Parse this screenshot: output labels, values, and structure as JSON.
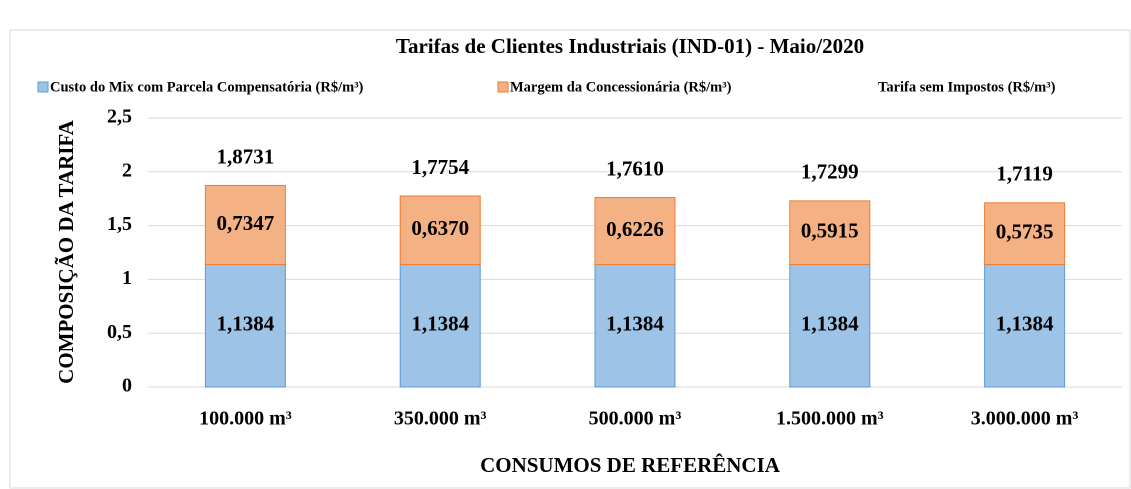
{
  "chart_data": {
    "type": "bar",
    "stacked": true,
    "title": "Tarifas de Clientes Industriais (IND-01) - Maio/2020",
    "x_label": "CONSUMOS DE REFERÊNCIA",
    "y_label": "COMPOSIÇÃO DA TARIFA",
    "categories": [
      "100.000 m³",
      "350.000 m³",
      "500.000 m³",
      "1.500.000 m³",
      "3.000.000 m³"
    ],
    "series": [
      {
        "name": "Custo do Mix com Parcela Compensatória (R$/m³)",
        "color": "#9dc3e6",
        "values": [
          1.1384,
          1.1384,
          1.1384,
          1.1384,
          1.1384
        ],
        "value_labels": [
          "1,1384",
          "1,1384",
          "1,1384",
          "1,1384",
          "1,1384"
        ]
      },
      {
        "name": "Margem da Concessionária (R$/m³)",
        "color": "#f4b183",
        "values": [
          0.7347,
          0.637,
          0.6226,
          0.5915,
          0.5735
        ],
        "value_labels": [
          "0,7347",
          "0,6370",
          "0,6226",
          "0,5915",
          "0,5735"
        ]
      },
      {
        "name": "Tarifa sem Impostos (R$/m³)",
        "stack": false,
        "values": [
          1.8731,
          1.7754,
          1.761,
          1.7299,
          1.7119
        ],
        "value_labels": [
          "1,8731",
          "1,7754",
          "1,7610",
          "1,7299",
          "1,7119"
        ]
      }
    ],
    "ylim": [
      0,
      2.5
    ],
    "yticks": [
      0,
      {
        "value": 0.5,
        "label": "0,5"
      },
      1,
      {
        "value": 1.5,
        "label": "1,5"
      },
      2,
      {
        "value": 2.5,
        "label": "2,5"
      }
    ],
    "grid": true,
    "legend": "top"
  }
}
